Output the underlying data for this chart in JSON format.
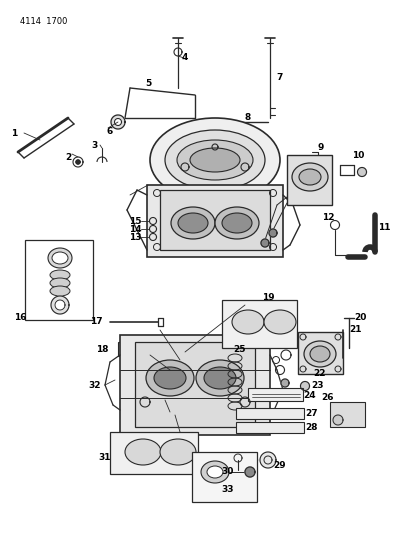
{
  "header_text": "4114  1700",
  "bg_color": "#ffffff",
  "line_color": "#2a2a2a",
  "text_color": "#000000",
  "figsize": [
    4.08,
    5.33
  ],
  "dpi": 100
}
